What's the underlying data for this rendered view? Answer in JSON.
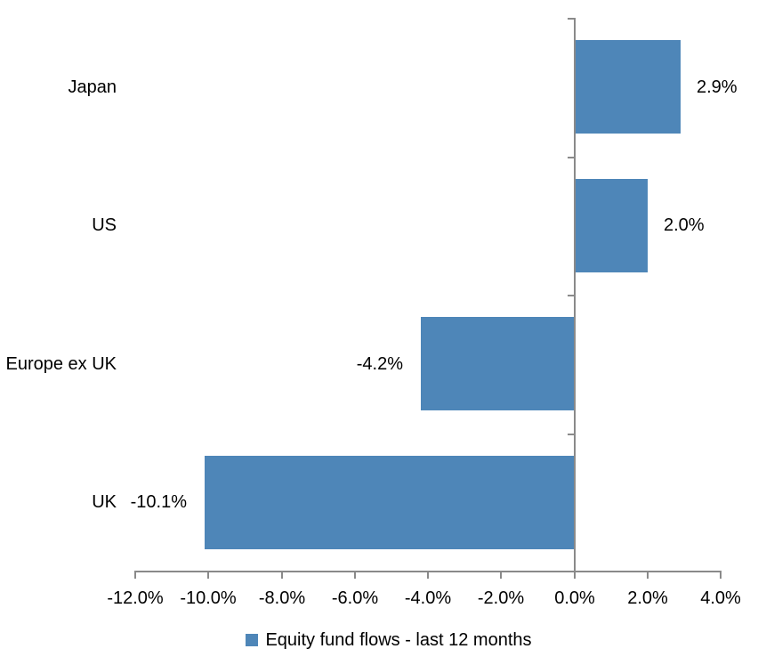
{
  "chart_data": {
    "type": "bar",
    "orientation": "horizontal",
    "title": "",
    "xlabel": "",
    "ylabel": "",
    "categories": [
      "Japan",
      "US",
      "Europe ex UK",
      "UK"
    ],
    "series": [
      {
        "name": "Equity fund flows - last 12 months",
        "values": [
          2.9,
          2.0,
          -4.2,
          -10.1
        ]
      }
    ],
    "value_labels": [
      "2.9%",
      "2.0%",
      "-4.2%",
      "-10.1%"
    ],
    "xlim": [
      -12,
      4
    ],
    "x_ticks": [
      -12,
      -10,
      -8,
      -6,
      -4,
      -2,
      0,
      2,
      4
    ],
    "x_tick_labels": [
      "-12.0%",
      "-10.0%",
      "-8.0%",
      "-6.0%",
      "-4.0%",
      "-2.0%",
      "0.0%",
      "2.0%",
      "4.0%"
    ],
    "grid": false,
    "legend_position": "bottom",
    "colors": {
      "bar": "#4e86b8",
      "axis": "#8a8a8a",
      "text": "#000000",
      "background": "#ffffff"
    }
  },
  "legend": {
    "items": [
      {
        "label": "Equity fund flows - last 12 months",
        "swatch_color": "#4e86b8"
      }
    ]
  }
}
